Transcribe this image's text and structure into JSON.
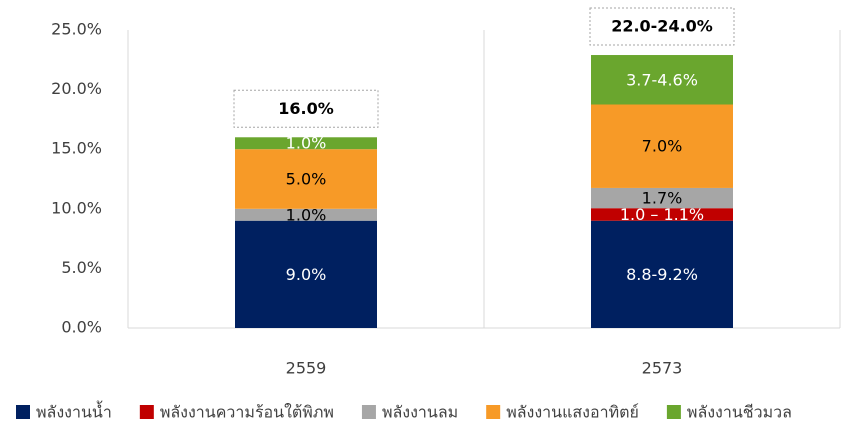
{
  "chart_data": {
    "type": "stacked_bar",
    "categories": [
      "2559",
      "2573"
    ],
    "series": [
      {
        "name": "พลังงานน้ำ",
        "color": "#002060",
        "label_color": "#ffffff",
        "values": [
          9.0,
          9.0
        ],
        "value_labels": [
          "9.0%",
          "8.8-9.2%"
        ]
      },
      {
        "name": "พลังงานความร้อนใต้พิภพ",
        "color": "#c00000",
        "label_color": "#ffffff",
        "values": [
          0,
          1.05
        ],
        "value_labels": [
          null,
          "1.0 – 1.1%"
        ]
      },
      {
        "name": "พลังงานลม",
        "color": "#a6a6a6",
        "label_color": "#000000",
        "values": [
          1.0,
          1.7
        ],
        "value_labels": [
          "1.0%",
          "1.7%"
        ]
      },
      {
        "name": "พลังงานแสงอาทิตย์",
        "color": "#f79a27",
        "label_color": "#000000",
        "values": [
          5.0,
          7.0
        ],
        "value_labels": [
          "5.0%",
          "7.0%"
        ]
      },
      {
        "name": "พลังงานชีวมวล",
        "color": "#6aa62e",
        "label_color": "#ffffff",
        "values": [
          1.0,
          4.15
        ],
        "value_labels": [
          "1.0%",
          "3.7-4.6%"
        ]
      }
    ],
    "total_labels": [
      "16.0%",
      "22.0-24.0%"
    ],
    "ylim": [
      0,
      25
    ],
    "yticks": [
      {
        "value": 0,
        "label": "0.0%"
      },
      {
        "value": 5,
        "label": "5.0%"
      },
      {
        "value": 10,
        "label": "10.0%"
      },
      {
        "value": 15,
        "label": "15.0%"
      },
      {
        "value": 20,
        "label": "20.0%"
      },
      {
        "value": 25,
        "label": "25.0%"
      }
    ],
    "legend": "bottom"
  }
}
